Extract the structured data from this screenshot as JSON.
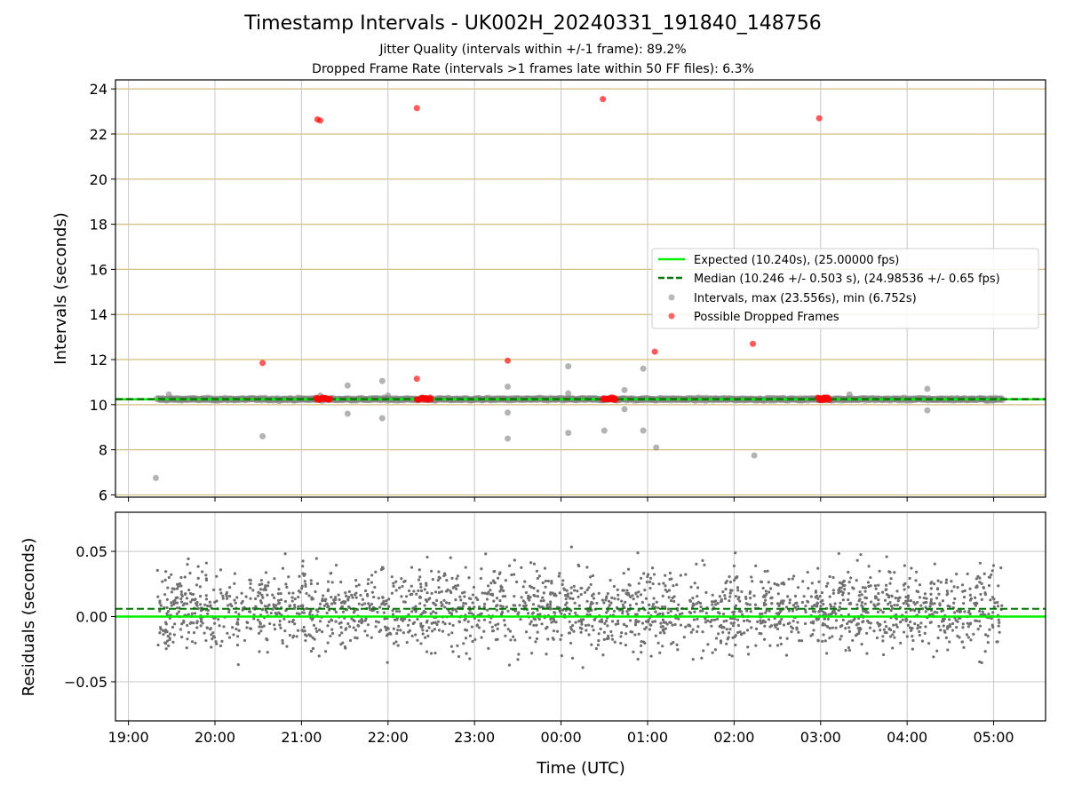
{
  "title": "Timestamp Intervals - UK002H_20240331_191840_148756",
  "subtitle_1": "Jitter Quality (intervals within +/-1 frame): 89.2%",
  "subtitle_2": "Dropped Frame Rate (intervals >1 frames late within 50 FF files): 6.3%",
  "colors": {
    "expected": "#00ee00",
    "median": "#007700",
    "intervals": "#808080",
    "dropped": "#ff0000",
    "hgrid_top": "#d4be7c",
    "grid": "#c8c8c8"
  },
  "chart_data": [
    {
      "type": "scatter",
      "panel": "intervals",
      "xlabel": "",
      "ylabel": "Intervals (seconds)",
      "xlim_hours": [
        18.85,
        29.6
      ],
      "ylim": [
        5.9,
        24.4
      ],
      "yticks": [
        6,
        8,
        10,
        12,
        14,
        16,
        18,
        20,
        22,
        24
      ],
      "expected": 10.24,
      "median": 10.246,
      "legend": {
        "placement": "center-right",
        "entries": [
          {
            "label": "Expected (10.240s), (25.00000 fps)",
            "style": "solid-line",
            "color": "#00ee00"
          },
          {
            "label": "Median (10.246 +/- 0.503 s), (24.98536 +/- 0.65 fps)",
            "style": "dashed-line",
            "color": "#007700"
          },
          {
            "label": "Intervals, max (23.556s), min (6.752s)",
            "style": "dot",
            "color": "#808080"
          },
          {
            "label": "Possible Dropped Frames",
            "style": "dot",
            "color": "#ff0000"
          }
        ]
      },
      "dense_band": {
        "x_start": "19:20",
        "x_end": "05:06",
        "y": 10.24
      },
      "interval_outliers": [
        {
          "x": "19:19",
          "y": 6.75
        },
        {
          "x": "19:28",
          "y": 10.45
        },
        {
          "x": "20:33",
          "y": 8.6
        },
        {
          "x": "21:13",
          "y": 10.4
        },
        {
          "x": "21:32",
          "y": 10.85
        },
        {
          "x": "21:32",
          "y": 9.6
        },
        {
          "x": "21:56",
          "y": 11.05
        },
        {
          "x": "21:56",
          "y": 9.4
        },
        {
          "x": "22:00",
          "y": 10.4
        },
        {
          "x": "23:23",
          "y": 10.8
        },
        {
          "x": "23:23",
          "y": 9.65
        },
        {
          "x": "23:23",
          "y": 8.5
        },
        {
          "x": "00:05",
          "y": 11.7
        },
        {
          "x": "00:05",
          "y": 8.75
        },
        {
          "x": "00:05",
          "y": 10.5
        },
        {
          "x": "00:30",
          "y": 8.85
        },
        {
          "x": "00:44",
          "y": 10.65
        },
        {
          "x": "00:44",
          "y": 9.8
        },
        {
          "x": "00:57",
          "y": 11.6
        },
        {
          "x": "00:57",
          "y": 8.85
        },
        {
          "x": "01:06",
          "y": 8.1
        },
        {
          "x": "02:14",
          "y": 7.75
        },
        {
          "x": "03:20",
          "y": 10.45
        },
        {
          "x": "04:14",
          "y": 10.7
        },
        {
          "x": "04:14",
          "y": 9.75
        }
      ],
      "dropped_frames": [
        {
          "x": "20:33",
          "y": 11.85
        },
        {
          "x": "21:11",
          "y": 22.65
        },
        {
          "x": "21:13",
          "y": 22.6
        },
        {
          "x": "22:20",
          "y": 23.15
        },
        {
          "x": "22:20",
          "y": 11.15
        },
        {
          "x": "23:23",
          "y": 11.95
        },
        {
          "x": "00:29",
          "y": 23.55
        },
        {
          "x": "01:05",
          "y": 12.35
        },
        {
          "x": "02:13",
          "y": 12.7
        },
        {
          "x": "02:59",
          "y": 22.7
        }
      ],
      "dropped_clusters": [
        {
          "x_start": "21:10",
          "x_end": "21:20",
          "y": 10.26
        },
        {
          "x_start": "22:20",
          "x_end": "22:30",
          "y": 10.26
        },
        {
          "x_start": "00:29",
          "x_end": "00:38",
          "y": 10.26
        },
        {
          "x_start": "02:58",
          "x_end": "03:06",
          "y": 10.26
        }
      ]
    },
    {
      "type": "scatter",
      "panel": "residuals",
      "xlabel": "Time (UTC)",
      "ylabel": "Residuals (seconds)",
      "xlim_hours": [
        18.85,
        29.6
      ],
      "ylim": [
        -0.08,
        0.08
      ],
      "yticks": [
        -0.05,
        0.0,
        0.05
      ],
      "ytick_labels": [
        "−0.05",
        "0.00",
        "0.05"
      ],
      "xticks": [
        "19:00",
        "20:00",
        "21:00",
        "22:00",
        "23:00",
        "00:00",
        "01:00",
        "02:00",
        "03:00",
        "04:00",
        "05:00"
      ],
      "expected": 0.0,
      "median": 0.006,
      "residual_spread": {
        "x_start": "19:20",
        "x_end": "05:06",
        "center": 0.006,
        "typical_range": [
          -0.035,
          0.055
        ]
      }
    }
  ]
}
